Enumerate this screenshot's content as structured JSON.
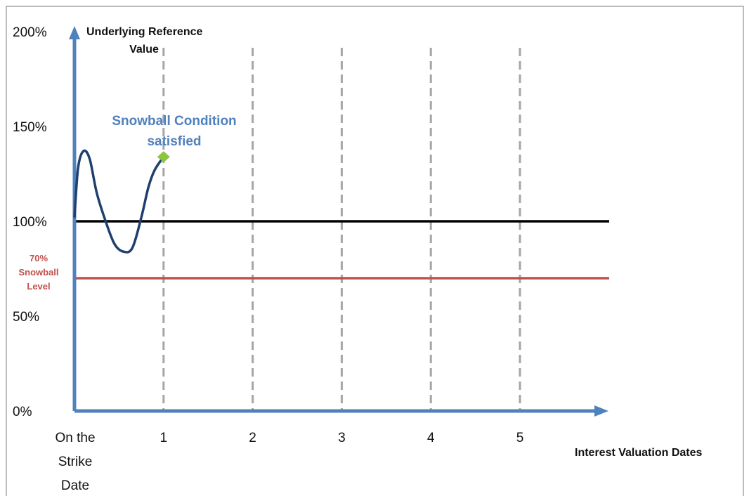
{
  "chart_data": {
    "type": "line",
    "title": "",
    "ylabel": "Underlying Reference Value",
    "xlabel": "Interest Valuation Dates",
    "ylim": [
      0,
      200
    ],
    "y_ticks": [
      "0%",
      "50%",
      "100%",
      "150%",
      "200%"
    ],
    "y_tick_values": [
      0,
      50,
      100,
      150,
      200
    ],
    "x_ticks": [
      "On the Strike Date",
      "1",
      "2",
      "3",
      "4",
      "5"
    ],
    "x_tick_values": [
      0,
      1,
      2,
      3,
      4,
      5
    ],
    "xlim": [
      0,
      6
    ],
    "x_tick_lines": [
      "On the",
      "Strike",
      "Date"
    ],
    "dashed_verticals": [
      1,
      2,
      3,
      4,
      5
    ],
    "reference_lines": [
      {
        "name": "100%",
        "value": 100,
        "color": "#000000"
      },
      {
        "name": "Snowball Level",
        "value": 70,
        "color": "#c0504d",
        "label_lines": [
          "70%",
          "Snowball",
          "Level"
        ]
      }
    ],
    "series": [
      {
        "color": "#1f3f6e",
        "x": [
          0.0,
          0.04,
          0.1,
          0.17,
          0.25,
          0.35,
          0.45,
          0.55,
          0.65,
          0.75,
          0.83,
          0.9,
          1.0
        ],
        "y": [
          102,
          128,
          137,
          133,
          115,
          100,
          88,
          84,
          86,
          102,
          118,
          127,
          134
        ]
      }
    ],
    "marker": {
      "x": 1,
      "y": 134,
      "color": "#8cc63f"
    },
    "annotation": {
      "lines": [
        "Snowball Condition",
        "satisfied"
      ],
      "color": "#4f81bd"
    },
    "colors": {
      "axis": "#4f81bd",
      "grid_dash": "#a6a6a6",
      "frame": "#a6a6a6"
    }
  }
}
